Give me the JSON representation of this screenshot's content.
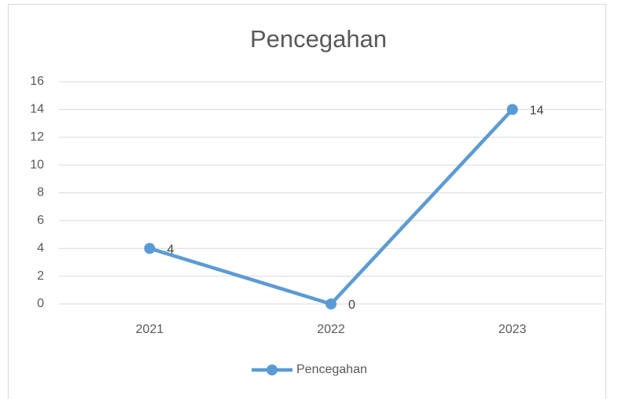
{
  "chart_data": {
    "type": "line",
    "title": "Pencegahan",
    "categories": [
      "2021",
      "2022",
      "2023"
    ],
    "series": [
      {
        "name": "Pencegahan",
        "color": "#5b9bd5",
        "values": [
          4,
          0,
          14
        ]
      }
    ],
    "ylim": [
      0,
      16
    ],
    "yticks": [
      0,
      2,
      4,
      6,
      8,
      10,
      12,
      14,
      16
    ],
    "grid": true,
    "legend": "bottom",
    "data_labels": true
  }
}
